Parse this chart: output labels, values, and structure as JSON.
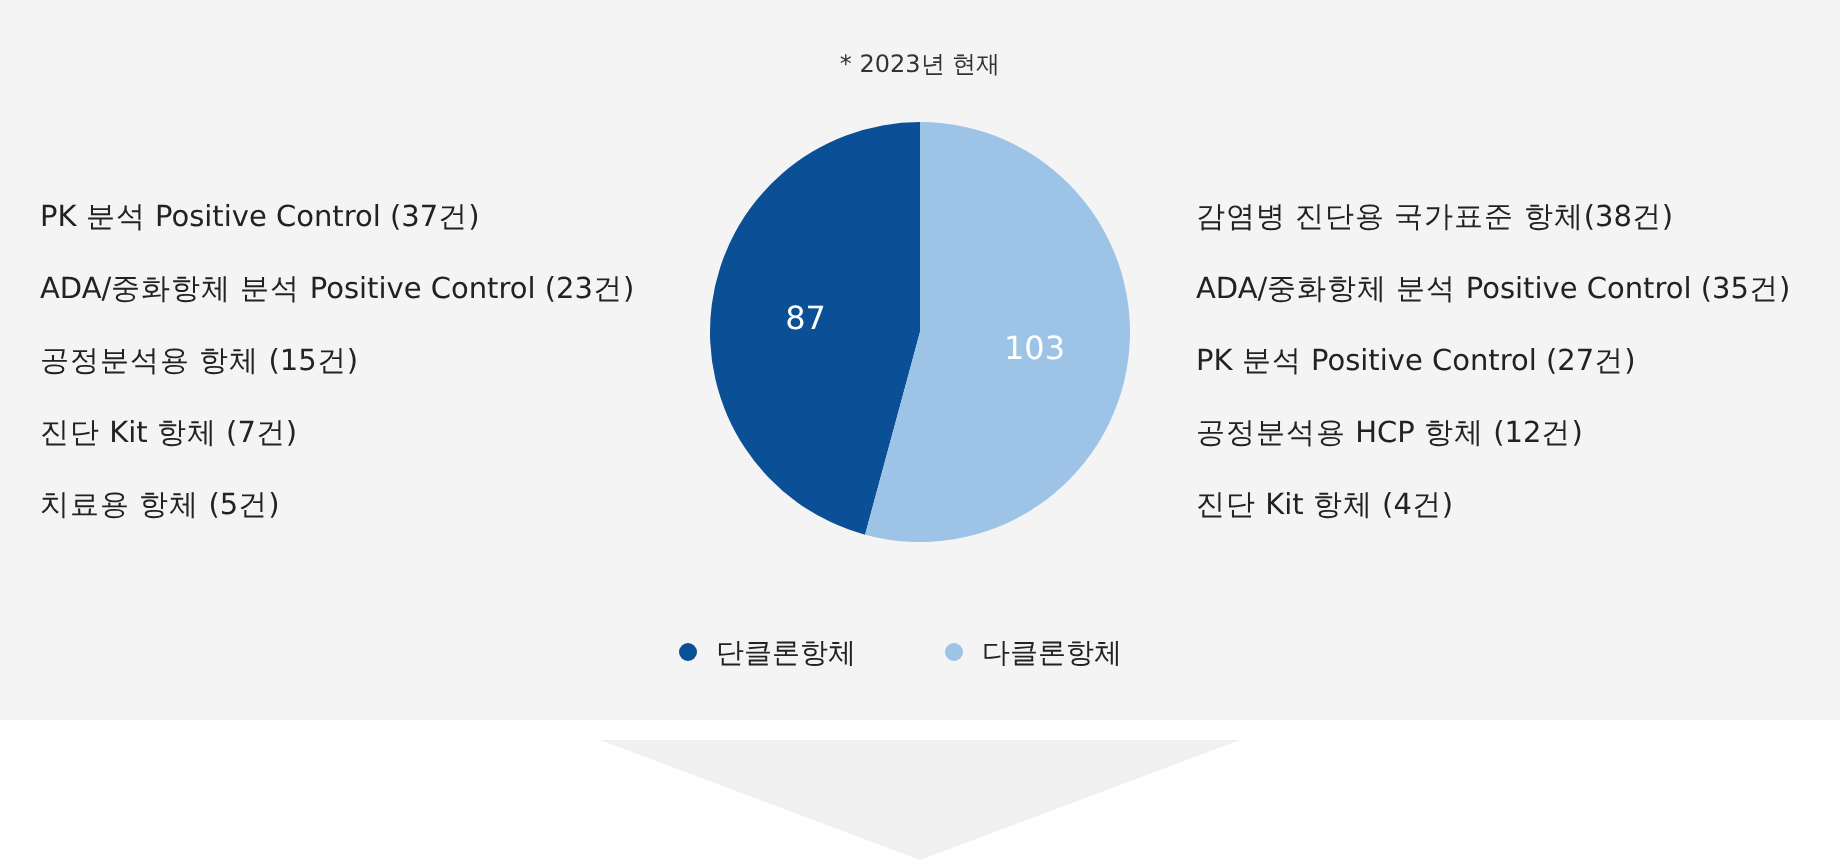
{
  "chart_data": {
    "type": "pie",
    "subtitle": "* 2023년 현재",
    "categories": [
      "단클론항체",
      "다클론항체"
    ],
    "values": [
      87,
      103
    ],
    "colors": [
      "#0b4f96",
      "#9dc3e6"
    ],
    "data_labels": true,
    "legend": "bottom",
    "annotations": [
      "PK 분석 Positive Control (37건)",
      "ADA/중화항체 분석 Positive Control (23건)",
      "공정분석용 항체 (15건)",
      "진단 Kit 항체 (7건)",
      "치료용 항체 (5건)",
      "감염병 진단용 국가표준 항체(38건)",
      "ADA/중화항체 분석 Positive Control (35건)",
      "PK 분석 Positive Control (27건)",
      "공정분석용 HCP 항체 (12건)",
      "진단 Kit 항체 (4건)"
    ]
  }
}
